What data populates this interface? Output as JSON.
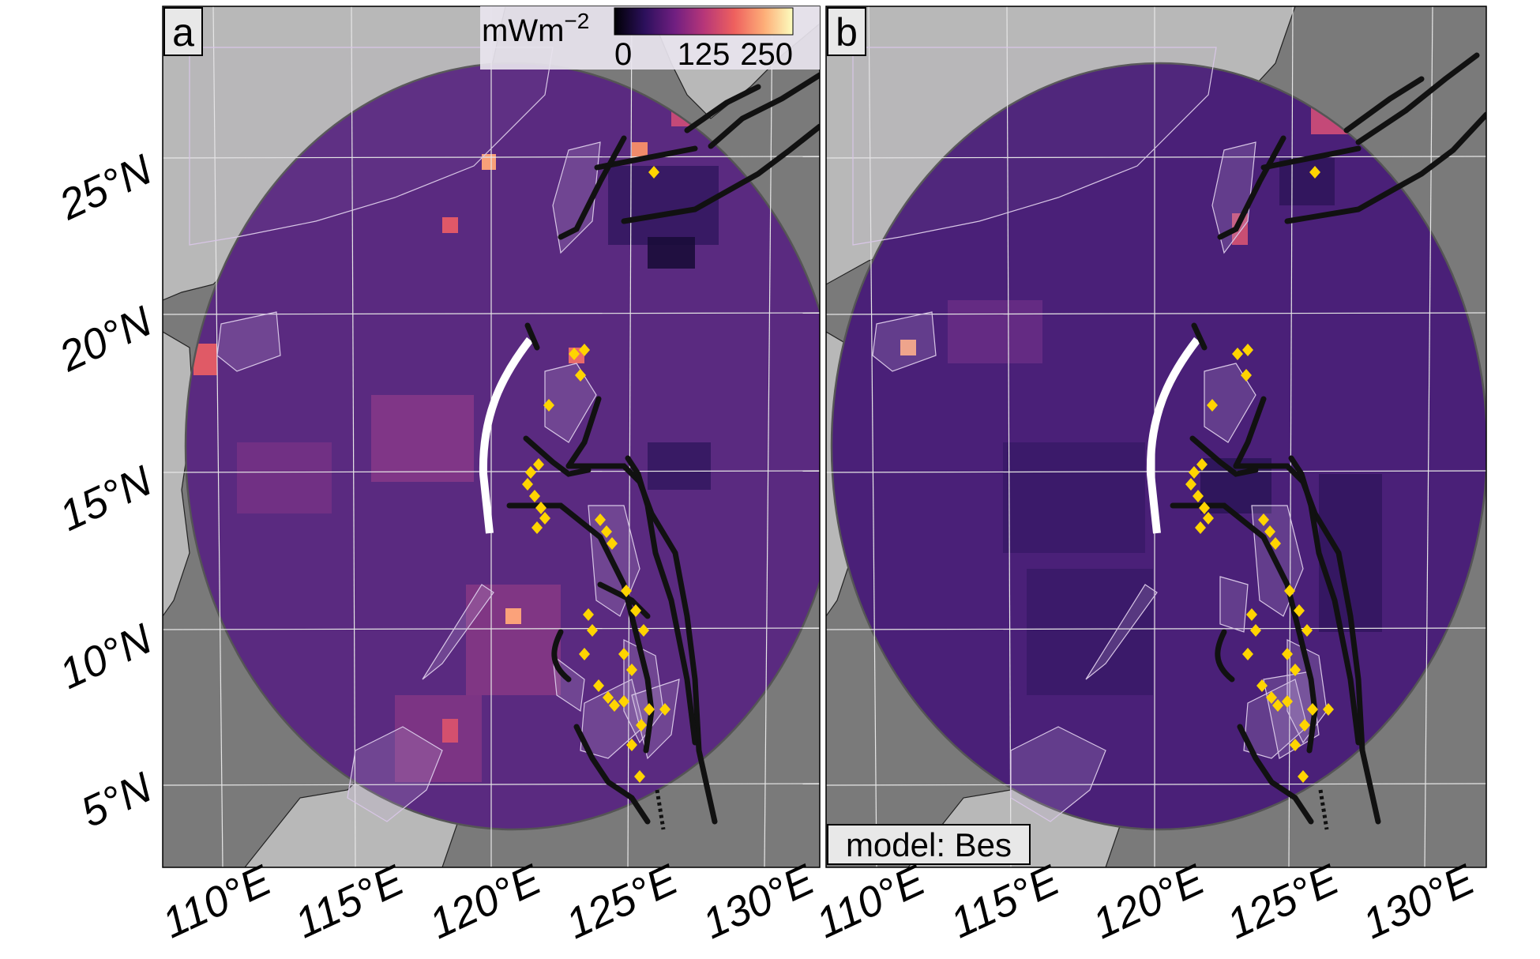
{
  "figure": {
    "panels": [
      {
        "tag": "a",
        "model_label": ""
      },
      {
        "tag": "b",
        "model_label": "model: Bes"
      }
    ],
    "colorbar": {
      "unit": "mWm",
      "unit_exponent": "−2",
      "ticks": [
        "0",
        "125",
        "250"
      ],
      "range": [
        0,
        250
      ],
      "palette": [
        "#000004",
        "#2c105c",
        "#711f81",
        "#b63679",
        "#ee605e",
        "#fdae78",
        "#fcfdbf"
      ]
    },
    "lat_ticks": [
      "25°N",
      "20°N",
      "15°N",
      "10°N",
      "5°N"
    ],
    "lon_ticks": [
      "110°E",
      "115°E",
      "120°E",
      "125°E",
      "130°E"
    ],
    "colors": {
      "ocean": "#7a7a7a",
      "land": "#b8b8b8",
      "heatflow_base": "#5a2a80",
      "trench": "#111111",
      "ridge": "#ffffff",
      "volcano": "#ffd400",
      "outline": "#555555"
    }
  }
}
